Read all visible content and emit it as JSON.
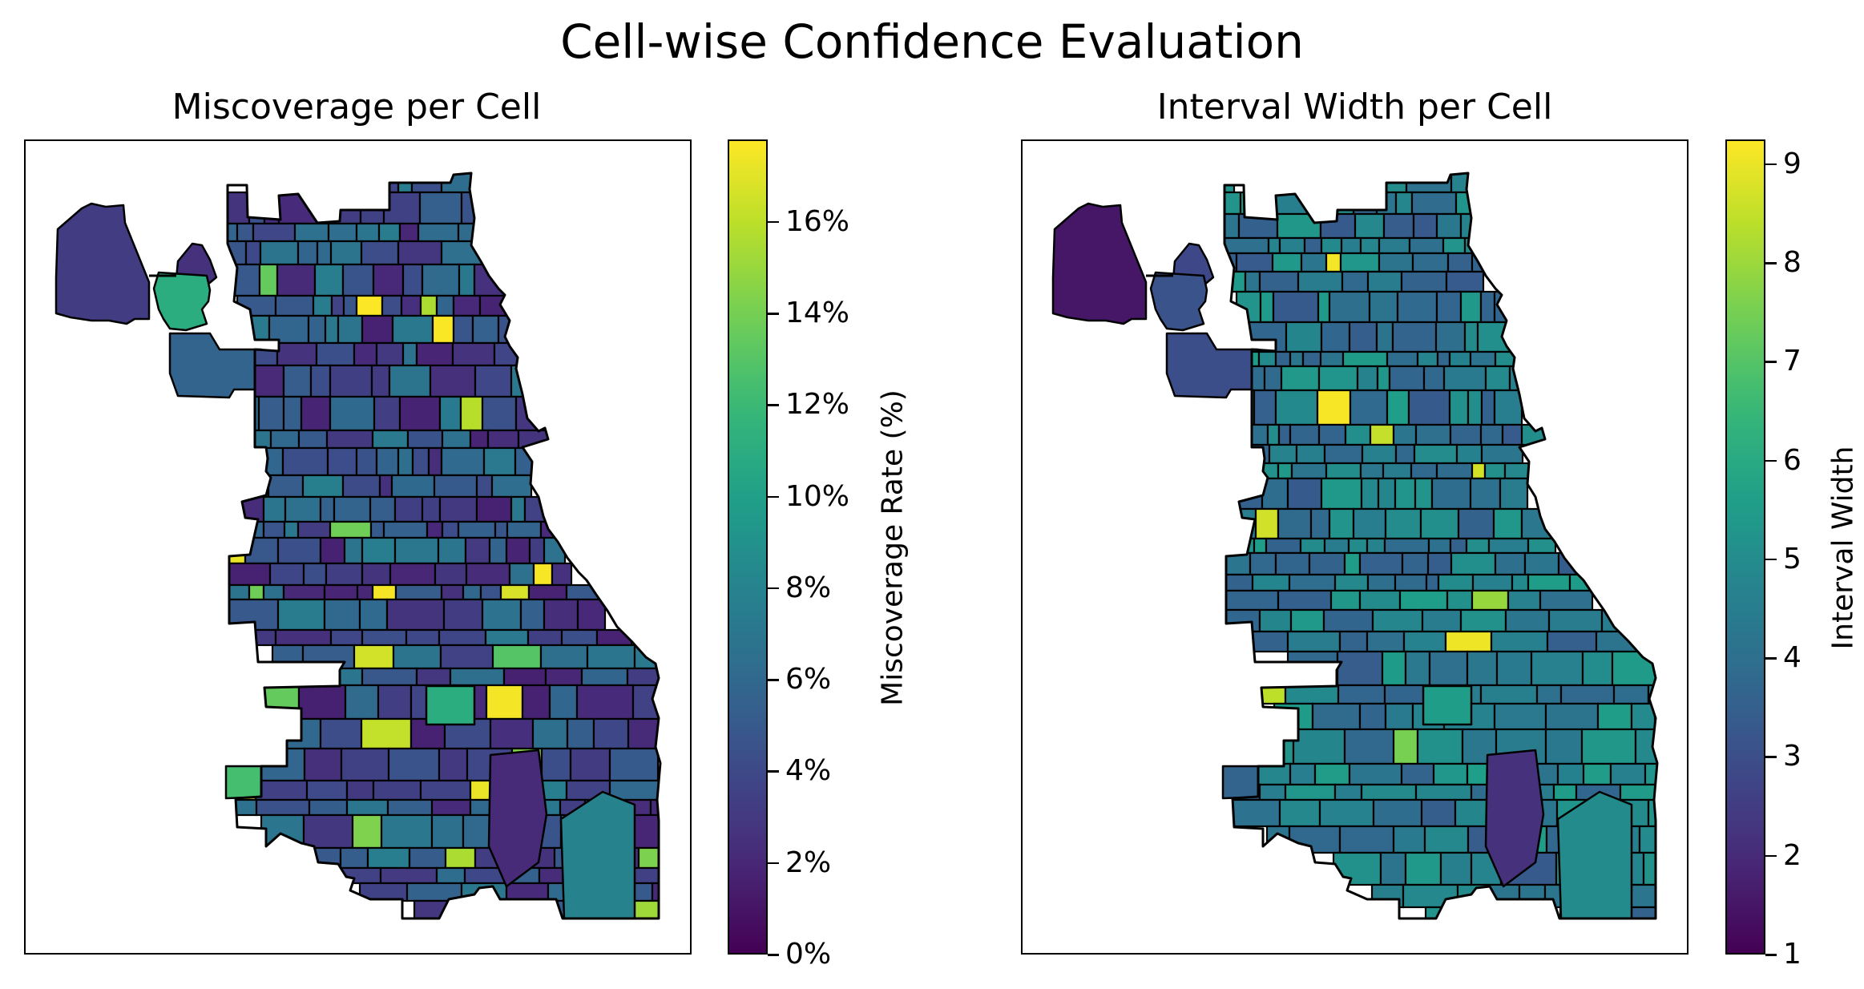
{
  "figure": {
    "title": "Cell-wise Confidence Evaluation"
  },
  "chart_data": [
    {
      "type": "heatmap",
      "title": "Miscoverage per Cell",
      "map": "choropleth of grid cells",
      "colormap": "viridis",
      "colorbar": {
        "label": "Miscoverage Rate (%)",
        "min": 0,
        "max": 17.8,
        "ticks": [
          0,
          2,
          4,
          6,
          8,
          10,
          12,
          14,
          16
        ],
        "tick_labels": [
          "0%",
          "2%",
          "4%",
          "6%",
          "8%",
          "10%",
          "12%",
          "14%",
          "16%"
        ]
      },
      "approx_values": {
        "typical_range": [
          1,
          8
        ],
        "hotspots": [
          15,
          17.5
        ]
      }
    },
    {
      "type": "heatmap",
      "title": "Interval Width per Cell",
      "map": "choropleth of grid cells",
      "colormap": "viridis",
      "colorbar": {
        "label": "Interval Width",
        "min": 1,
        "max": 9.25,
        "ticks": [
          1,
          2,
          3,
          4,
          5,
          6,
          7,
          8,
          9
        ],
        "tick_labels": [
          "1",
          "2",
          "3",
          "4",
          "5",
          "6",
          "7",
          "8",
          "9"
        ]
      },
      "approx_values": {
        "typical_range": [
          3,
          6
        ],
        "hotspots": [
          8.5,
          9.2
        ]
      }
    }
  ]
}
